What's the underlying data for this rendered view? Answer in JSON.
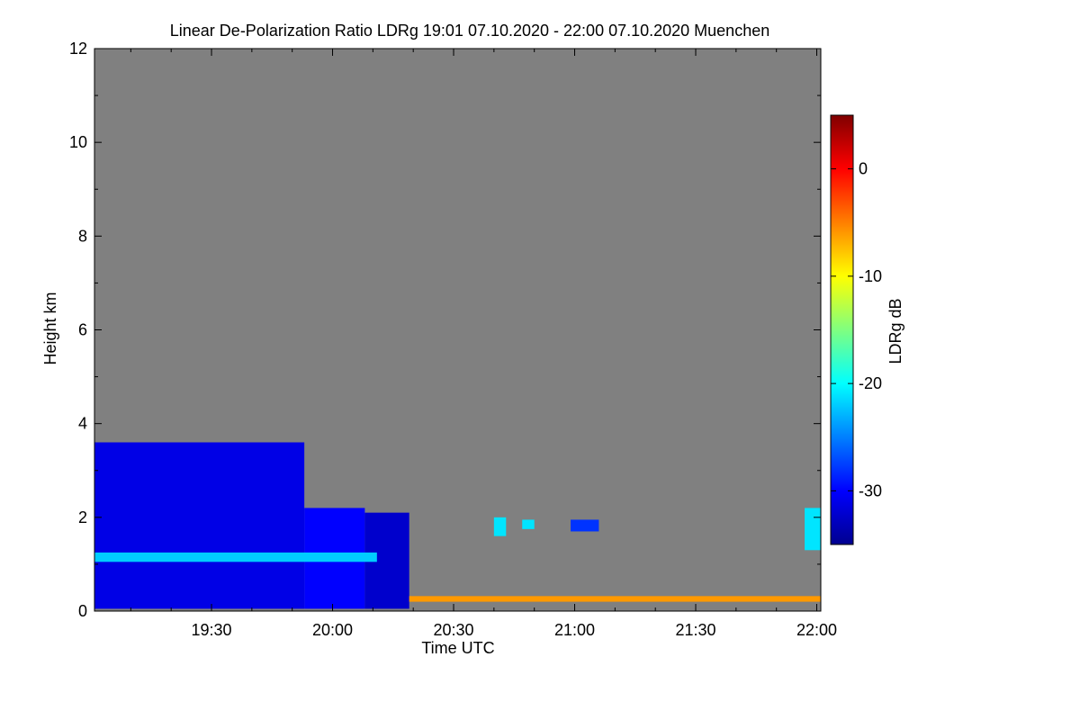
{
  "chart_data": {
    "type": "heatmap",
    "title": "Linear De-Polarization Ratio LDRg   19:01 07.10.2020 - 22:00 07.10.2020 Muenchen",
    "xlabel": "Time UTC",
    "ylabel": "Height km",
    "x_ticks": [
      "19:30",
      "20:00",
      "20:30",
      "21:00",
      "21:30",
      "22:00"
    ],
    "x_tick_minutes": [
      29,
      59,
      89,
      119,
      149,
      179
    ],
    "x_range_minutes": [
      0,
      180
    ],
    "y_ticks": [
      0,
      2,
      4,
      6,
      8,
      10,
      12
    ],
    "ylim": [
      0,
      12
    ],
    "colorbar": {
      "label": "LDRg dB",
      "ticks": [
        0,
        -10,
        -20,
        -30
      ],
      "range": [
        -35,
        5
      ]
    },
    "background_color": "#808080",
    "colormap": "jet",
    "regions": [
      {
        "t0": 0,
        "t1": 52,
        "h0": 0.05,
        "h1": 3.6,
        "ldr": -31
      },
      {
        "t0": 52,
        "t1": 67,
        "h0": 0.05,
        "h1": 2.2,
        "ldr": -30
      },
      {
        "t0": 67,
        "t1": 78,
        "h0": 0.05,
        "h1": 2.1,
        "ldr": -32
      },
      {
        "t0": 0,
        "t1": 70,
        "h0": 1.05,
        "h1": 1.25,
        "ldr": -22
      },
      {
        "t0": 78,
        "t1": 180,
        "h0": 0.2,
        "h1": 0.32,
        "ldr": -6
      },
      {
        "t0": 99,
        "t1": 102,
        "h0": 1.6,
        "h1": 2.0,
        "ldr": -21
      },
      {
        "t0": 106,
        "t1": 109,
        "h0": 1.75,
        "h1": 1.95,
        "ldr": -21
      },
      {
        "t0": 118,
        "t1": 125,
        "h0": 1.7,
        "h1": 1.95,
        "ldr": -28
      },
      {
        "t0": 176,
        "t1": 180,
        "h0": 1.3,
        "h1": 2.2,
        "ldr": -21
      }
    ]
  }
}
